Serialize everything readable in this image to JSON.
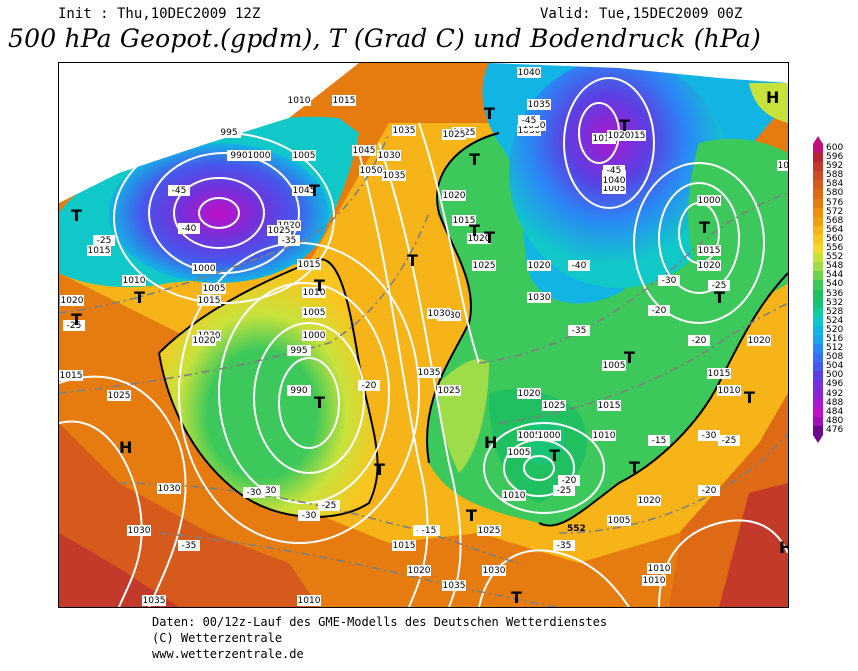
{
  "header": {
    "init": "Init : Thu,10DEC2009 12Z",
    "valid": "Valid: Tue,15DEC2009 00Z",
    "title": "500 hPa Geopot.(gpdm), T (Grad C) und Bodendruck (hPa)"
  },
  "legend": {
    "levels": [
      "600",
      "596",
      "592",
      "588",
      "584",
      "580",
      "576",
      "572",
      "568",
      "564",
      "560",
      "556",
      "552",
      "548",
      "544",
      "540",
      "536",
      "532",
      "528",
      "524",
      "520",
      "516",
      "512",
      "508",
      "504",
      "500",
      "496",
      "492",
      "488",
      "484",
      "480",
      "476"
    ],
    "colors": [
      "#c0107a",
      "#b8242e",
      "#c43a2a",
      "#cc4a26",
      "#d65a1c",
      "#de6a16",
      "#e67c10",
      "#ee8e0a",
      "#f2a010",
      "#f6b418",
      "#f8c61e",
      "#f4d830",
      "#c8e23c",
      "#9edc4a",
      "#6cd250",
      "#3cc85a",
      "#20c060",
      "#18c478",
      "#14c8a0",
      "#10c8c8",
      "#12b4e4",
      "#1ca0f2",
      "#2a88f6",
      "#3870f4",
      "#4658ec",
      "#5a40e2",
      "#7430da",
      "#8c24d6",
      "#aa18d0",
      "#c010c8",
      "#a010b8",
      "#6a0a8a"
    ]
  },
  "map": {
    "pressure_labels": [
      "1010",
      "1015",
      "1040",
      "1035",
      "1030",
      "1025",
      "1015",
      "1035",
      "995",
      "990",
      "1000",
      "1005",
      "1045",
      "1050",
      "1030",
      "1035",
      "1020",
      "1025",
      "1015",
      "1000",
      "1005",
      "1010",
      "1015",
      "1020",
      "1015",
      "1025",
      "1020",
      "1030",
      "1015",
      "1010",
      "1005",
      "1000",
      "995",
      "990",
      "1030",
      "1025",
      "1020",
      "1020",
      "1030",
      "1025",
      "1015",
      "1010",
      "1005",
      "1010",
      "1000",
      "1005",
      "1000",
      "1020",
      "1015",
      "1020",
      "1025",
      "1015",
      "1020",
      "1010",
      "1005",
      "1005",
      "1010",
      "1015",
      "1020",
      "1025",
      "1010",
      "1015",
      "1020",
      "1025",
      "1020",
      "1030",
      "1030",
      "1035",
      "1035",
      "1030",
      "1035",
      "1030",
      "1040",
      "1045",
      "1025",
      "1020",
      "1005",
      "1010",
      "1020",
      "1010",
      "1015"
    ],
    "temperature_labels": [
      "-45",
      "-40",
      "-35",
      "-30",
      "-25",
      "-20",
      "-15",
      "-45",
      "-40",
      "-35",
      "-30",
      "-25",
      "-20",
      "-15",
      "-25",
      "-30",
      "-35",
      "-40",
      "-45",
      "-30",
      "-25",
      "-20",
      "-15",
      "-30",
      "-25",
      "-20",
      "-35",
      "-30",
      "-25",
      "-20",
      "-15"
    ],
    "geopotential_label": "552",
    "high_symbol": "H",
    "low_symbol": "T"
  },
  "footer": {
    "line1": "Daten: 00/12z-Lauf des GME-Modells des Deutschen Wetterdienstes",
    "line2": "(C) Wetterzentrale",
    "line3": "www.wetterzentrale.de"
  }
}
